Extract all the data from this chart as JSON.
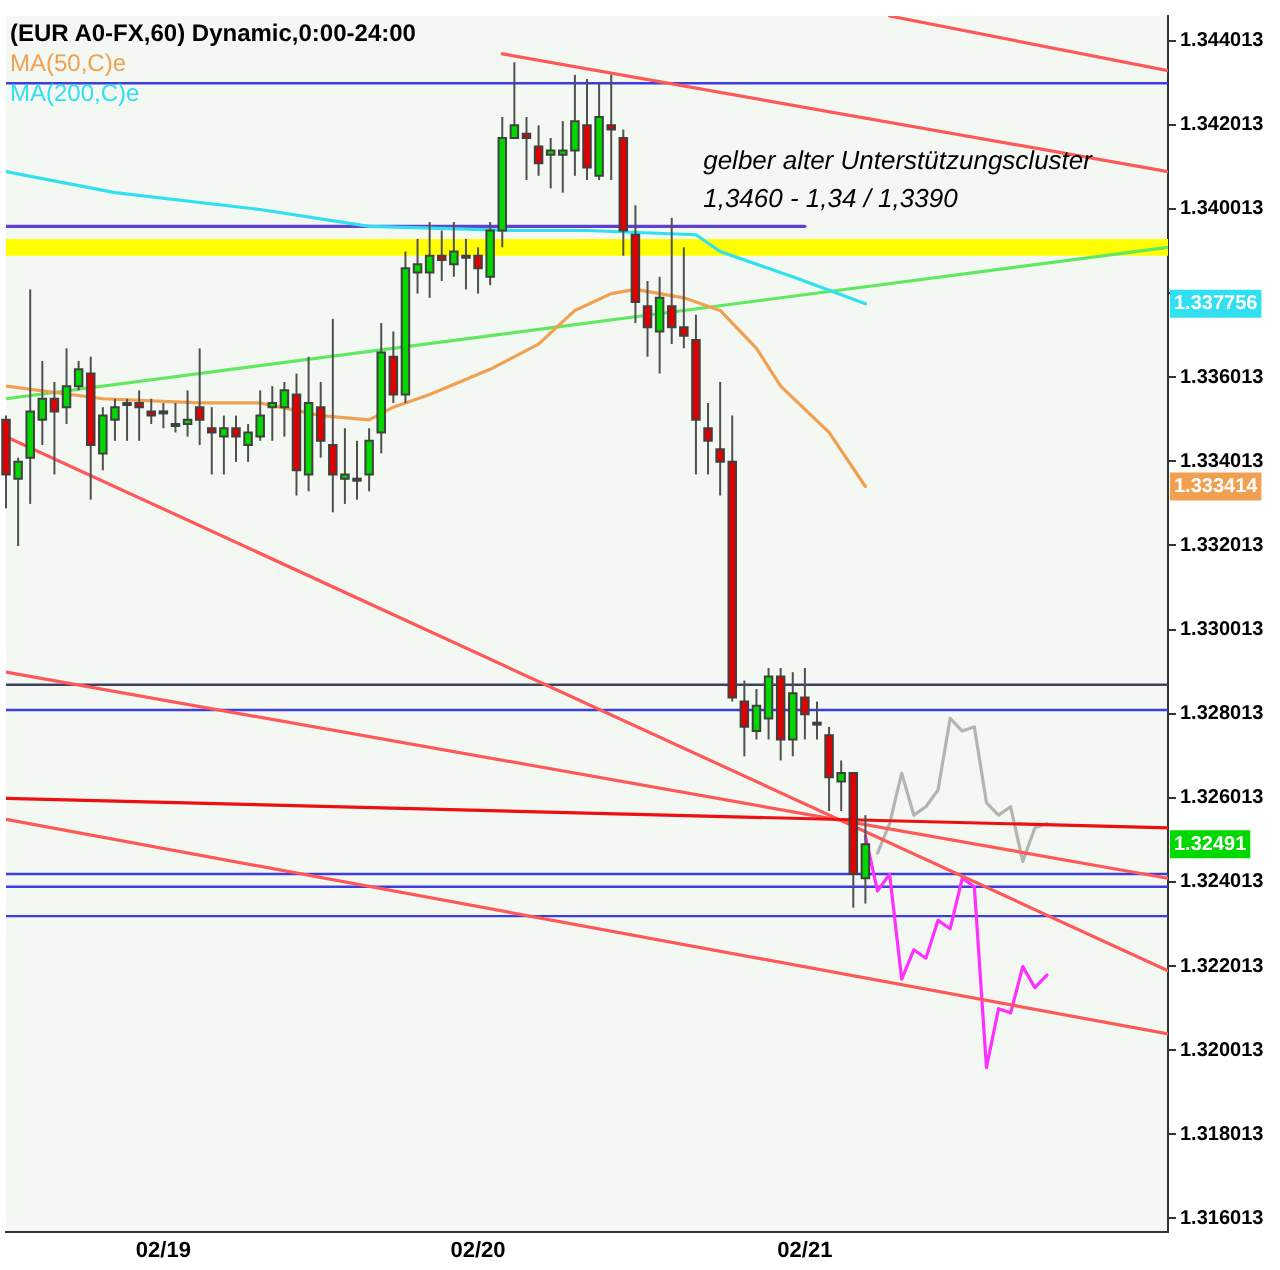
{
  "chart_data": {
    "type": "candlestick",
    "title": "(EUR A0-FX,60) Dynamic,0:00-24:00",
    "categories": [
      null,
      null,
      null,
      null,
      null,
      null,
      null,
      null,
      null,
      null,
      null,
      null,
      null,
      "02/19",
      null,
      null,
      null,
      null,
      null,
      null,
      null,
      null,
      null,
      null,
      null,
      null,
      null,
      null,
      null,
      null,
      null,
      null,
      null,
      null,
      null,
      null,
      null,
      null,
      null,
      "02/20",
      null,
      null,
      null,
      null,
      null,
      null,
      null,
      null,
      null,
      null,
      null,
      null,
      null,
      null,
      null,
      null,
      null,
      null,
      null,
      null,
      null,
      null,
      null,
      null,
      null,
      null,
      "02/21",
      null,
      null,
      null,
      null,
      null,
      null,
      null,
      null,
      null,
      null,
      null,
      null,
      null,
      null,
      null,
      null,
      null,
      null,
      null,
      null,
      null,
      null,
      null,
      null,
      null,
      null,
      null,
      null,
      null,
      null
    ],
    "ylim": [
      1.3157,
      1.3446
    ],
    "yticks": [
      1.316013,
      1.318013,
      1.320013,
      1.322013,
      1.324013,
      1.326013,
      1.328013,
      1.330013,
      1.332013,
      1.334013,
      1.336013,
      {
        "value": 1.338013,
        "label": null
      },
      1.340013,
      1.342013,
      1.344013
    ],
    "legend": "top left",
    "marker": "none",
    "line_style": "solid",
    "ref_lines": [
      {
        "axis": "y",
        "value": 1.343,
        "color": "#3c3ce0"
      },
      {
        "axis": "y",
        "value": 1.3287,
        "color": "#404060"
      },
      {
        "axis": "y",
        "value": 1.3281,
        "color": "#3c3ce0"
      },
      {
        "axis": "y",
        "value": 1.3242,
        "color": "#3c3ce0"
      },
      {
        "axis": "y",
        "value": 1.3239,
        "color": "#3c3ce0"
      },
      {
        "axis": "y",
        "value": 1.3232,
        "color": "#3c3ce0"
      }
    ],
    "bands": [
      {
        "axis": "y",
        "from": 1.3389,
        "to": 1.3393,
        "color": "#ffff00"
      }
    ],
    "annotations": [
      "gelber alter Unterstützungscluster",
      "1,3460 - 1,34 / 1,3390",
      "1.337756",
      "1.333414",
      "1.32491"
    ],
    "series": [
      {
        "type": "line",
        "color": "#f0a050",
        "name": "MA(50,C)e",
        "values": [
          1.3358,
          null,
          null,
          null,
          null,
          null,
          null,
          null,
          1.3355,
          null,
          null,
          null,
          null,
          null,
          null,
          null,
          1.3354,
          null,
          null,
          null,
          null,
          1.3354,
          null,
          null,
          null,
          null,
          1.3351,
          null,
          null,
          null,
          1.335,
          null,
          1.3353,
          null,
          null,
          1.3356,
          null,
          null,
          null,
          null,
          1.3362,
          null,
          null,
          null,
          1.3368,
          null,
          null,
          1.3376,
          null,
          null,
          1.338,
          null,
          1.3381,
          null,
          null,
          null,
          1.3379,
          null,
          null,
          1.3376,
          null,
          null,
          1.3367,
          null,
          1.3358,
          null,
          null,
          null,
          1.3347,
          null,
          null,
          1.333414,
          null,
          null,
          null,
          null,
          null,
          null,
          null,
          null,
          null,
          null,
          null,
          null,
          null,
          null,
          null,
          null,
          null,
          null,
          null,
          null,
          null,
          null,
          null,
          null,
          null
        ]
      },
      {
        "type": "line",
        "color": "#30e0f0",
        "name": "MA(200,C)e",
        "values": [
          1.3409,
          null,
          null,
          null,
          null,
          null,
          null,
          null,
          null,
          1.3404,
          null,
          null,
          null,
          null,
          null,
          null,
          null,
          null,
          null,
          null,
          null,
          1.34,
          null,
          null,
          null,
          null,
          null,
          null,
          null,
          null,
          1.3396,
          null,
          null,
          null,
          null,
          null,
          null,
          null,
          null,
          null,
          null,
          null,
          1.3395,
          null,
          null,
          null,
          null,
          null,
          1.3395,
          null,
          null,
          null,
          null,
          null,
          null,
          null,
          null,
          1.3394,
          null,
          1.339,
          null,
          null,
          null,
          null,
          null,
          1.3384,
          null,
          null,
          null,
          null,
          null,
          1.337756,
          null,
          null,
          null,
          null,
          null,
          null,
          null,
          null,
          null,
          null,
          null,
          null,
          null,
          null,
          null,
          null,
          null,
          null,
          null,
          null,
          null,
          null,
          null,
          null,
          null
        ]
      },
      {
        "type": "line",
        "color": "#60e860",
        "values": [
          1.3355,
          null,
          null,
          null,
          null,
          null,
          null,
          null,
          null,
          null,
          null,
          null,
          null,
          null,
          null,
          null,
          null,
          null,
          null,
          null,
          null,
          null,
          null,
          null,
          null,
          null,
          null,
          null,
          null,
          null,
          null,
          null,
          null,
          null,
          null,
          null,
          null,
          null,
          null,
          null,
          null,
          null,
          null,
          null,
          null,
          null,
          null,
          null,
          null,
          null,
          null,
          null,
          null,
          null,
          null,
          null,
          null,
          null,
          null,
          null,
          null,
          null,
          null,
          null,
          null,
          null,
          null,
          null,
          null,
          null,
          null,
          null,
          null,
          null,
          null,
          null,
          null,
          null,
          null,
          null,
          null,
          null,
          null,
          null,
          null,
          null,
          null,
          null,
          null,
          null,
          null,
          null,
          null,
          null,
          null,
          null,
          1.3391
        ]
      },
      {
        "type": "line",
        "color": "#6040d0",
        "values": [
          1.3396,
          null,
          null,
          null,
          null,
          null,
          null,
          null,
          null,
          null,
          null,
          null,
          null,
          null,
          null,
          null,
          null,
          null,
          null,
          null,
          null,
          null,
          null,
          null,
          null,
          null,
          null,
          null,
          null,
          null,
          null,
          null,
          null,
          null,
          null,
          null,
          null,
          null,
          null,
          null,
          null,
          null,
          null,
          null,
          null,
          null,
          null,
          null,
          null,
          null,
          null,
          null,
          null,
          null,
          null,
          null,
          null,
          null,
          null,
          null,
          null,
          null,
          null,
          null,
          null,
          null,
          1.3396,
          null,
          null,
          null,
          null,
          null,
          null,
          null,
          null,
          null,
          null,
          null,
          null,
          null,
          null,
          null,
          null,
          null,
          null,
          null,
          null,
          null,
          null,
          null,
          null,
          null,
          null,
          null,
          null,
          null,
          null
        ]
      },
      {
        "type": "line",
        "color": "#ee1010",
        "values": [
          1.326,
          null,
          null,
          null,
          null,
          null,
          null,
          null,
          null,
          null,
          null,
          null,
          null,
          null,
          null,
          null,
          null,
          null,
          null,
          null,
          null,
          null,
          null,
          null,
          null,
          null,
          null,
          null,
          null,
          null,
          null,
          null,
          null,
          null,
          null,
          null,
          null,
          null,
          null,
          null,
          null,
          null,
          null,
          null,
          null,
          null,
          null,
          null,
          null,
          null,
          null,
          null,
          null,
          null,
          null,
          null,
          null,
          null,
          null,
          null,
          null,
          null,
          null,
          null,
          null,
          null,
          null,
          null,
          null,
          null,
          null,
          null,
          null,
          null,
          null,
          null,
          null,
          null,
          null,
          null,
          null,
          null,
          null,
          null,
          null,
          null,
          null,
          null,
          null,
          null,
          null,
          null,
          null,
          null,
          null,
          null,
          1.3253
        ]
      },
      {
        "type": "line",
        "color": "#ff5858",
        "values": [
          null,
          null,
          null,
          null,
          null,
          null,
          null,
          null,
          null,
          null,
          null,
          null,
          null,
          null,
          null,
          null,
          null,
          null,
          null,
          null,
          null,
          null,
          null,
          null,
          null,
          null,
          null,
          null,
          null,
          null,
          null,
          null,
          null,
          null,
          null,
          null,
          null,
          null,
          null,
          null,
          null,
          null,
          null,
          null,
          null,
          null,
          null,
          null,
          null,
          null,
          null,
          null,
          null,
          null,
          null,
          null,
          null,
          null,
          null,
          null,
          null,
          null,
          null,
          null,
          null,
          null,
          null,
          null,
          null,
          null,
          null,
          null,
          null,
          1.3446,
          null,
          null,
          null,
          null,
          null,
          null,
          null,
          null,
          null,
          null,
          null,
          null,
          null,
          null,
          null,
          null,
          null,
          null,
          null,
          null,
          null,
          null,
          1.3433
        ]
      },
      {
        "type": "line",
        "color": "#ff5858",
        "values": [
          null,
          null,
          null,
          null,
          null,
          null,
          null,
          null,
          null,
          null,
          null,
          null,
          null,
          null,
          null,
          null,
          null,
          null,
          null,
          null,
          null,
          null,
          null,
          null,
          null,
          null,
          null,
          null,
          null,
          null,
          null,
          null,
          null,
          null,
          null,
          null,
          null,
          null,
          null,
          null,
          null,
          1.3437,
          null,
          null,
          null,
          null,
          null,
          null,
          null,
          null,
          null,
          null,
          null,
          null,
          null,
          null,
          null,
          null,
          null,
          null,
          null,
          null,
          null,
          null,
          null,
          null,
          null,
          null,
          null,
          null,
          null,
          null,
          null,
          null,
          null,
          null,
          null,
          null,
          null,
          null,
          null,
          null,
          null,
          null,
          null,
          null,
          null,
          null,
          null,
          null,
          null,
          null,
          null,
          null,
          null,
          null,
          1.3409
        ]
      },
      {
        "type": "line",
        "color": "#ff5858",
        "values": [
          1.329,
          null,
          null,
          null,
          null,
          null,
          null,
          null,
          null,
          null,
          null,
          null,
          null,
          null,
          null,
          null,
          null,
          null,
          null,
          null,
          null,
          null,
          null,
          null,
          null,
          null,
          null,
          null,
          null,
          null,
          null,
          null,
          null,
          null,
          null,
          null,
          null,
          null,
          null,
          null,
          null,
          null,
          null,
          null,
          null,
          null,
          null,
          null,
          null,
          null,
          null,
          null,
          null,
          null,
          null,
          null,
          null,
          null,
          null,
          null,
          null,
          null,
          null,
          null,
          null,
          null,
          null,
          null,
          null,
          null,
          null,
          null,
          null,
          null,
          null,
          null,
          null,
          null,
          null,
          null,
          null,
          null,
          null,
          null,
          null,
          null,
          null,
          null,
          null,
          null,
          null,
          null,
          null,
          null,
          null,
          null,
          1.3241
        ]
      },
      {
        "type": "line",
        "color": "#ff5858",
        "values": [
          1.3346,
          null,
          null,
          null,
          null,
          null,
          null,
          null,
          null,
          null,
          null,
          null,
          null,
          null,
          null,
          null,
          null,
          null,
          null,
          null,
          null,
          null,
          null,
          null,
          null,
          null,
          null,
          null,
          null,
          null,
          null,
          null,
          null,
          null,
          null,
          null,
          null,
          null,
          null,
          null,
          null,
          null,
          null,
          null,
          null,
          null,
          null,
          null,
          null,
          null,
          null,
          null,
          null,
          null,
          null,
          null,
          null,
          null,
          null,
          null,
          null,
          null,
          null,
          null,
          null,
          null,
          null,
          null,
          null,
          null,
          null,
          null,
          null,
          null,
          null,
          null,
          null,
          null,
          null,
          null,
          null,
          null,
          null,
          null,
          null,
          null,
          null,
          null,
          null,
          null,
          null,
          null,
          null,
          null,
          null,
          null,
          1.3219
        ]
      },
      {
        "type": "line",
        "color": "#ff5858",
        "values": [
          1.3255,
          null,
          null,
          null,
          null,
          null,
          null,
          null,
          null,
          null,
          null,
          null,
          null,
          null,
          null,
          null,
          null,
          null,
          null,
          null,
          null,
          null,
          null,
          null,
          null,
          null,
          null,
          null,
          null,
          null,
          null,
          null,
          null,
          null,
          null,
          null,
          null,
          null,
          null,
          null,
          null,
          null,
          null,
          null,
          null,
          null,
          null,
          null,
          null,
          null,
          null,
          null,
          null,
          null,
          null,
          null,
          null,
          null,
          null,
          null,
          null,
          null,
          null,
          null,
          null,
          null,
          null,
          null,
          null,
          null,
          null,
          null,
          null,
          null,
          null,
          null,
          null,
          null,
          null,
          null,
          null,
          null,
          null,
          null,
          null,
          null,
          null,
          null,
          null,
          null,
          null,
          null,
          null,
          null,
          null,
          null,
          1.3204
        ]
      },
      {
        "type": "line",
        "color": "#b4b4b4",
        "values": [
          null,
          null,
          null,
          null,
          null,
          null,
          null,
          null,
          null,
          null,
          null,
          null,
          null,
          null,
          null,
          null,
          null,
          null,
          null,
          null,
          null,
          null,
          null,
          null,
          null,
          null,
          null,
          null,
          null,
          null,
          null,
          null,
          null,
          null,
          null,
          null,
          null,
          null,
          null,
          null,
          null,
          null,
          null,
          null,
          null,
          null,
          null,
          null,
          null,
          null,
          null,
          null,
          null,
          null,
          null,
          null,
          null,
          null,
          null,
          null,
          null,
          null,
          null,
          null,
          null,
          null,
          null,
          null,
          null,
          null,
          null,
          null,
          1.3247,
          1.3254,
          1.3266,
          1.3256,
          1.3258,
          1.3262,
          1.3279,
          1.3276,
          1.3277,
          1.3259,
          1.3256,
          1.3258,
          1.3245,
          1.3253,
          1.3254,
          null,
          null,
          null,
          null,
          null,
          null,
          null,
          null,
          null,
          null
        ]
      },
      {
        "type": "line",
        "color": "#ff30ff",
        "values": [
          null,
          null,
          null,
          null,
          null,
          null,
          null,
          null,
          null,
          null,
          null,
          null,
          null,
          null,
          null,
          null,
          null,
          null,
          null,
          null,
          null,
          null,
          null,
          null,
          null,
          null,
          null,
          null,
          null,
          null,
          null,
          null,
          null,
          null,
          null,
          null,
          null,
          null,
          null,
          null,
          null,
          null,
          null,
          null,
          null,
          null,
          null,
          null,
          null,
          null,
          null,
          null,
          null,
          null,
          null,
          null,
          null,
          null,
          null,
          null,
          null,
          null,
          null,
          null,
          null,
          null,
          null,
          null,
          null,
          null,
          null,
          1.3251,
          1.3238,
          1.3242,
          1.3217,
          1.3224,
          1.3222,
          1.3231,
          1.3229,
          1.3241,
          1.3239,
          1.3196,
          1.321,
          1.3209,
          1.322,
          1.3215,
          1.3218,
          null,
          null,
          null,
          null,
          null,
          null,
          null,
          null,
          null,
          null
        ]
      },
      {
        "ohlc": [
          [
            1.335,
            1.3351,
            1.3329,
            1.3337
          ],
          [
            1.3336,
            1.3341,
            1.332,
            1.334
          ],
          [
            1.3341,
            1.3381,
            1.333,
            1.3352
          ],
          [
            1.335,
            1.3364,
            1.3344,
            1.3355
          ],
          [
            1.3355,
            1.3359,
            1.3337,
            1.3352
          ],
          [
            1.3353,
            1.3367,
            1.3349,
            1.3358
          ],
          [
            1.3358,
            1.3364,
            1.3357,
            1.3362
          ],
          [
            1.3361,
            1.3365,
            1.3331,
            1.3344
          ],
          [
            1.3342,
            1.3353,
            1.3338,
            1.3351
          ],
          [
            1.335,
            1.3355,
            1.3345,
            1.3353
          ],
          [
            1.3354,
            1.3355,
            1.3345,
            1.3354
          ],
          [
            1.3354,
            1.3357,
            1.3345,
            1.3353
          ],
          [
            1.3352,
            1.3355,
            1.3349,
            1.3351
          ],
          [
            1.3352,
            1.3354,
            1.3348,
            1.3352
          ],
          [
            1.3349,
            1.3354,
            1.3347,
            1.3349
          ],
          [
            1.3349,
            1.3357,
            1.3346,
            1.335
          ],
          [
            1.3353,
            1.3367,
            1.3344,
            1.335
          ],
          [
            1.3348,
            1.3353,
            1.3337,
            1.3347
          ],
          [
            1.3346,
            1.3351,
            1.3337,
            1.3348
          ],
          [
            1.3348,
            1.3351,
            1.334,
            1.3346
          ],
          [
            1.3344,
            1.3349,
            1.334,
            1.3347
          ],
          [
            1.3346,
            1.3357,
            1.3345,
            1.3351
          ],
          [
            1.3353,
            1.3358,
            1.3345,
            1.3354
          ],
          [
            1.3353,
            1.3359,
            1.3346,
            1.3357
          ],
          [
            1.3356,
            1.3361,
            1.3332,
            1.3338
          ],
          [
            1.3337,
            1.3365,
            1.3333,
            1.3354
          ],
          [
            1.3353,
            1.3359,
            1.3341,
            1.3345
          ],
          [
            1.3344,
            1.3374,
            1.3328,
            1.3337
          ],
          [
            1.3336,
            1.3348,
            1.333,
            1.3337
          ],
          [
            1.3336,
            1.3345,
            1.3331,
            1.3336
          ],
          [
            1.3337,
            1.3348,
            1.3333,
            1.3345
          ],
          [
            1.3347,
            1.3373,
            1.3342,
            1.3366
          ],
          [
            1.3365,
            1.3371,
            1.3354,
            1.3356
          ],
          [
            1.3356,
            1.339,
            1.3354,
            1.3386
          ],
          [
            1.3385,
            1.3393,
            1.338,
            1.3387
          ],
          [
            1.3385,
            1.3397,
            1.3379,
            1.3389
          ],
          [
            1.3389,
            1.3395,
            1.3383,
            1.3388
          ],
          [
            1.3387,
            1.3397,
            1.3384,
            1.339
          ],
          [
            1.3389,
            1.3393,
            1.3381,
            1.3389
          ],
          [
            1.3389,
            1.3391,
            1.338,
            1.3386
          ],
          [
            1.3384,
            1.3397,
            1.3382,
            1.3395
          ],
          [
            1.3395,
            1.3422,
            1.3391,
            1.3417
          ],
          [
            1.3417,
            1.3435,
            1.3417,
            1.342
          ],
          [
            1.3418,
            1.3422,
            1.3407,
            1.3417
          ],
          [
            1.3415,
            1.342,
            1.3408,
            1.3411
          ],
          [
            1.3413,
            1.3417,
            1.3405,
            1.3414
          ],
          [
            1.3413,
            1.3421,
            1.3404,
            1.3414
          ],
          [
            1.3414,
            1.3432,
            1.3408,
            1.3421
          ],
          [
            1.342,
            1.3431,
            1.3407,
            1.341
          ],
          [
            1.3408,
            1.343,
            1.3407,
            1.3422
          ],
          [
            1.342,
            1.3432,
            1.3407,
            1.3419
          ],
          [
            1.3417,
            1.3419,
            1.3389,
            1.3395
          ],
          [
            1.3394,
            1.3401,
            1.3373,
            1.3378
          ],
          [
            1.3377,
            1.3383,
            1.3365,
            1.3372
          ],
          [
            1.3371,
            1.3384,
            1.3361,
            1.3379
          ],
          [
            1.3377,
            1.3398,
            1.3368,
            1.3372
          ],
          [
            1.3372,
            1.3391,
            1.3367,
            1.337
          ],
          [
            1.3369,
            1.3375,
            1.3337,
            1.335
          ],
          [
            1.3348,
            1.3354,
            1.3337,
            1.3345
          ],
          [
            1.3343,
            1.3359,
            1.3332,
            1.334
          ],
          [
            1.334,
            1.3351,
            1.3283,
            1.3284
          ],
          [
            1.3283,
            1.3288,
            1.327,
            1.3277
          ],
          [
            1.3276,
            1.3286,
            1.3274,
            1.3282
          ],
          [
            1.3279,
            1.3291,
            1.3274,
            1.3289
          ],
          [
            1.3289,
            1.3291,
            1.3269,
            1.3274
          ],
          [
            1.3274,
            1.329,
            1.327,
            1.3285
          ],
          [
            1.3284,
            1.3291,
            1.3274,
            1.328
          ],
          [
            1.3278,
            1.3283,
            1.3274,
            1.3278
          ],
          [
            1.3275,
            1.3277,
            1.3257,
            1.3265
          ],
          [
            1.3264,
            1.3269,
            1.3257,
            1.3266
          ],
          [
            1.3266,
            1.3266,
            1.3234,
            1.3242
          ],
          [
            1.3241,
            1.3256,
            1.3235,
            1.32491
          ],
          null,
          null,
          null,
          null,
          null,
          null,
          null,
          null,
          null,
          null,
          null,
          null,
          null,
          null,
          null,
          null,
          null,
          null,
          null,
          null,
          null,
          null,
          null,
          null,
          null
        ],
        "colors": [
          "#e00000",
          "#00d800",
          "#00d800",
          "#00d800",
          "#e00000",
          "#00d800",
          "#00d800",
          "#e00000",
          "#00d800",
          "#00d800",
          "#00d800",
          "#e00000",
          "#e00000",
          "#e00000",
          "#e00000",
          "#00d800",
          "#e00000",
          "#e00000",
          "#00d800",
          "#e00000",
          "#00d800",
          "#00d800",
          "#00d800",
          "#00d800",
          "#e00000",
          "#00d800",
          "#e00000",
          "#e00000",
          "#00d800",
          "#e00000",
          "#00d800",
          "#00d800",
          "#e00000",
          "#00d800",
          "#00d800",
          "#00d800",
          "#e00000",
          "#00d800",
          "#e00000",
          "#e00000",
          "#00d800",
          "#00d800",
          "#00d800",
          "#e00000",
          "#e00000",
          "#00d800",
          "#00d800",
          "#00d800",
          "#e00000",
          "#00d800",
          "#e00000",
          "#e00000",
          "#e00000",
          "#e00000",
          "#00d800",
          "#e00000",
          "#e00000",
          "#e00000",
          "#e00000",
          "#e00000",
          "#e00000",
          "#e00000",
          "#00d800",
          "#00d800",
          "#e00000",
          "#00d800",
          "#e00000",
          "#e00000",
          "#e00000",
          "#00d800",
          "#e00000",
          "#00d800",
          null,
          null,
          null,
          null,
          null,
          null,
          null,
          null,
          null,
          null,
          null,
          null,
          null,
          null,
          null,
          null,
          null,
          null,
          null,
          null,
          null,
          null,
          null,
          null,
          null
        ]
      }
    ]
  }
}
